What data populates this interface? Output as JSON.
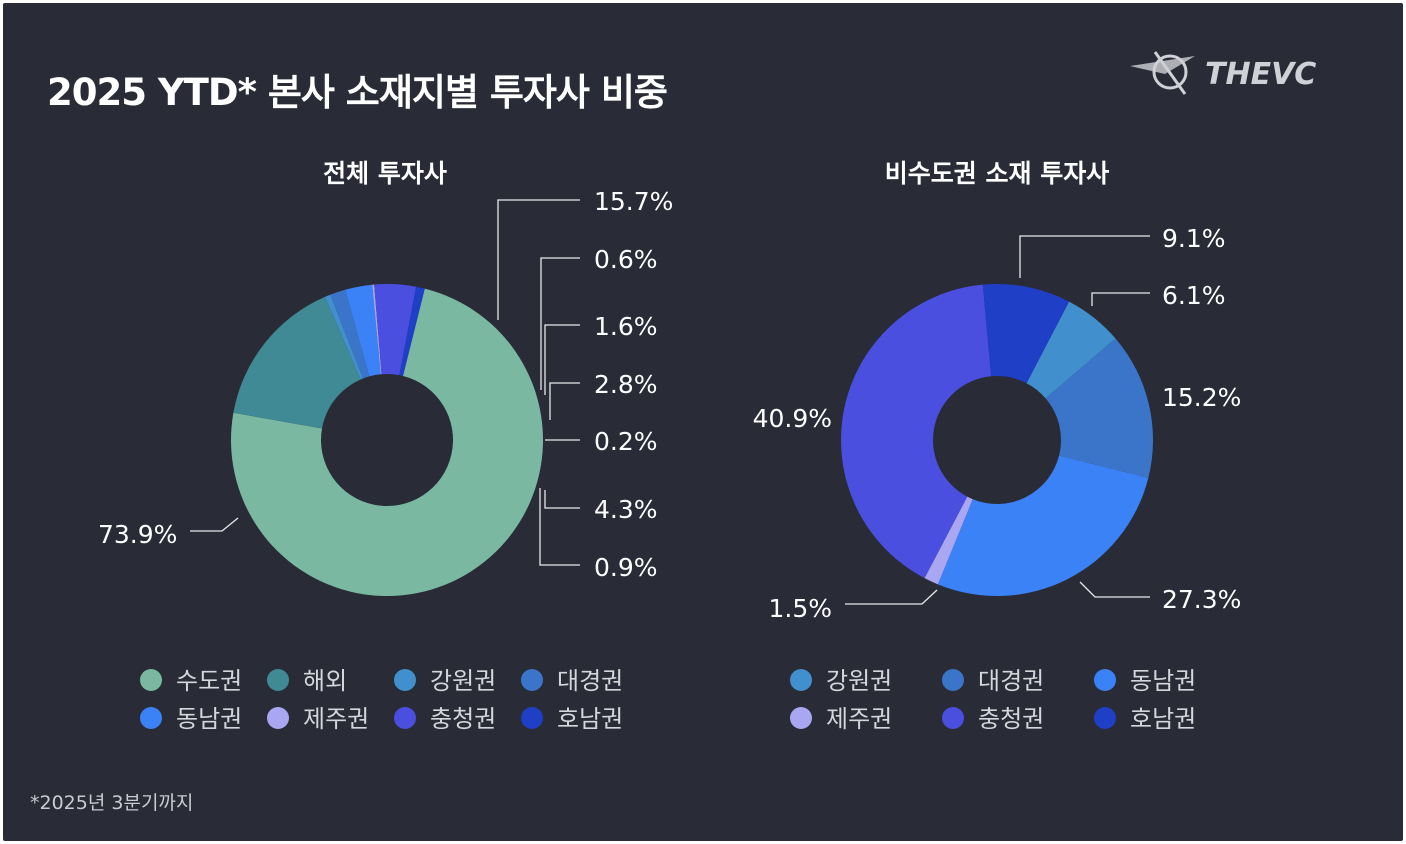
{
  "title": "2025 YTD* 본사 소재지별 투자사 비중",
  "footnote": "*2025년 3분기까지",
  "logo_text": "THEVC",
  "colors": {
    "background": "#292c36",
    "수도권": "#7ab8a2",
    "해외": "#3f8a94",
    "강원권": "#418fcc",
    "대경권": "#3a75c9",
    "동남권": "#3b82f6",
    "제주권": "#a9a7f2",
    "충청권": "#4a4fdf",
    "호남권": "#1e3fc6"
  },
  "chart_data": [
    {
      "type": "pie",
      "title": "전체 투자사",
      "categories": [
        "수도권",
        "해외",
        "강원권",
        "대경권",
        "동남권",
        "제주권",
        "충청권",
        "호남권"
      ],
      "values": [
        73.9,
        15.7,
        0.6,
        1.6,
        2.8,
        0.2,
        4.3,
        0.9
      ],
      "labels": [
        "73.9%",
        "15.7%",
        "0.6%",
        "1.6%",
        "2.8%",
        "0.2%",
        "4.3%",
        "0.9%"
      ],
      "legend": [
        "수도권",
        "해외",
        "강원권",
        "대경권",
        "동남권",
        "제주권",
        "충청권",
        "호남권"
      ]
    },
    {
      "type": "pie",
      "title": "비수도권 소재 투자사",
      "categories": [
        "강원권",
        "대경권",
        "동남권",
        "제주권",
        "충청권",
        "호남권"
      ],
      "values": [
        6.1,
        15.2,
        27.3,
        1.5,
        40.9,
        9.1
      ],
      "labels": [
        "6.1%",
        "15.2%",
        "27.3%",
        "1.5%",
        "40.9%",
        "9.1%"
      ],
      "legend": [
        "강원권",
        "대경권",
        "동남권",
        "제주권",
        "충청권",
        "호남권"
      ]
    }
  ]
}
